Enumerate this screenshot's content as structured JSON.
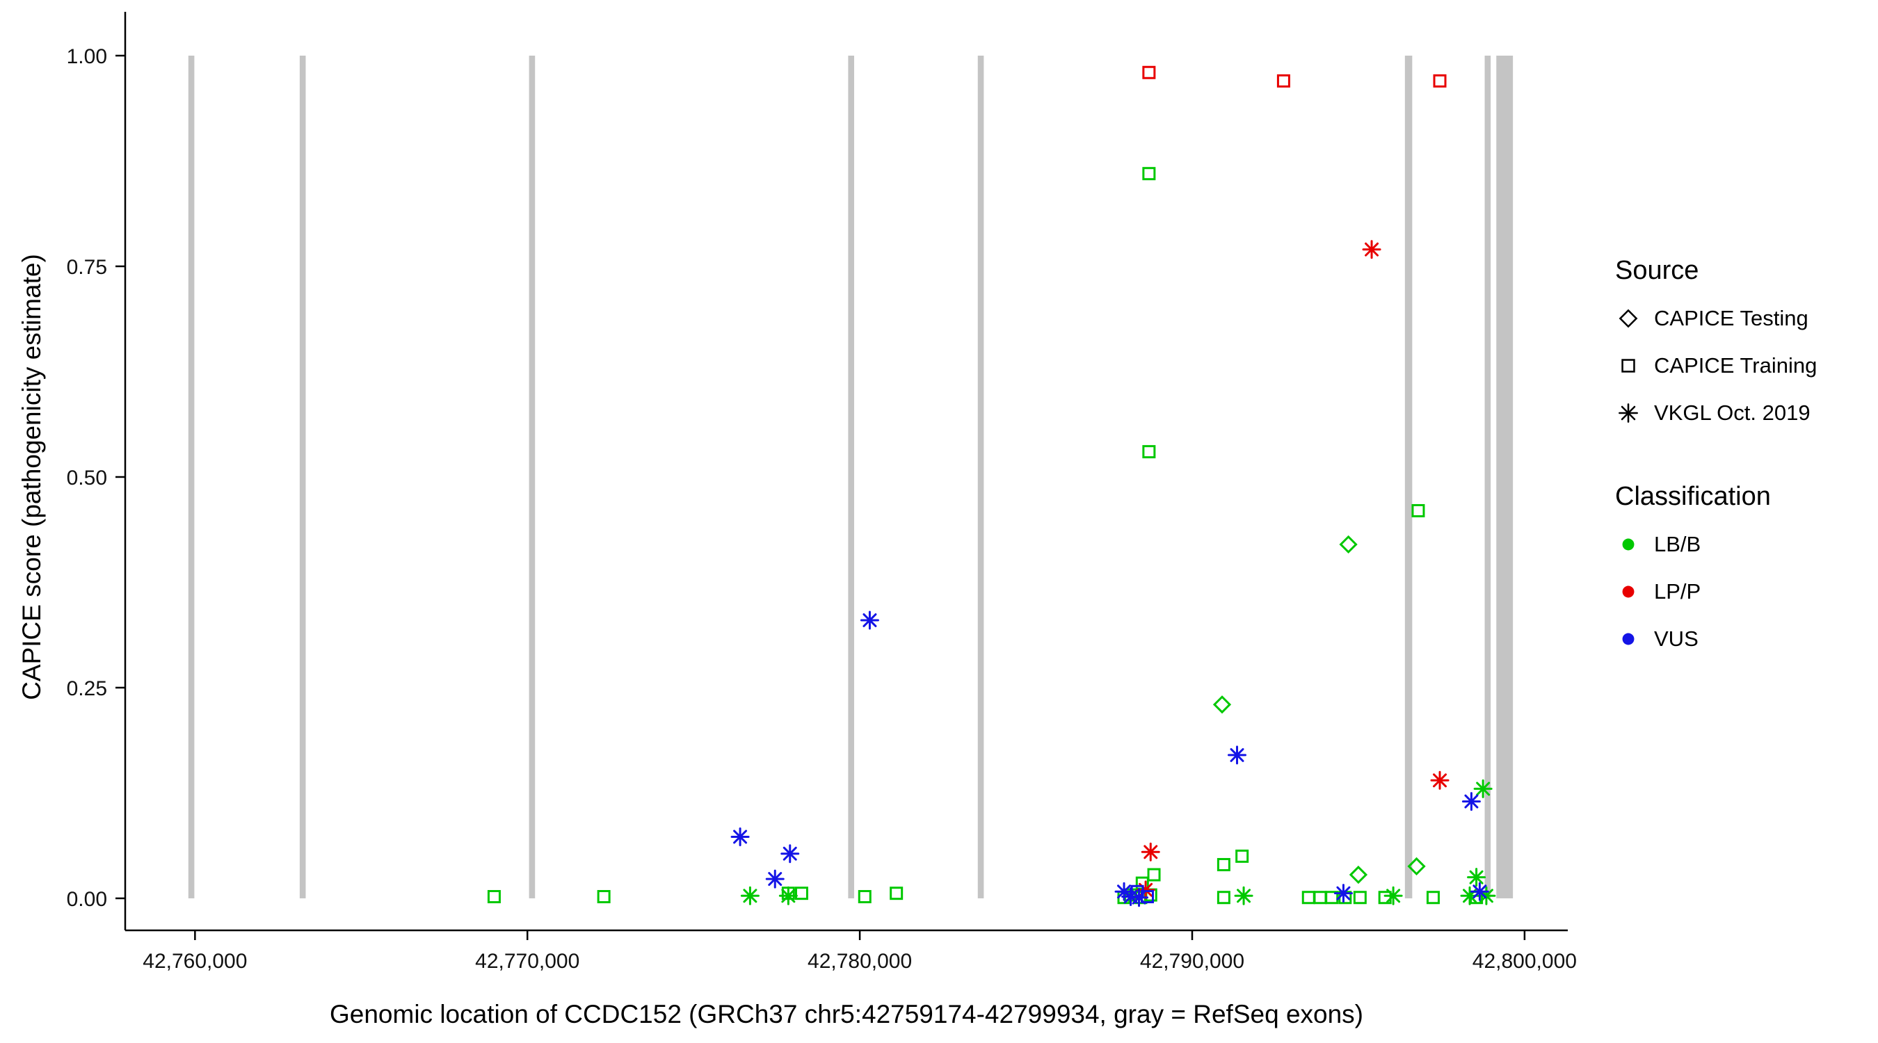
{
  "figure": {
    "background": "#FFFFFF",
    "text_color": "#000000",
    "axis_color": "#000000"
  },
  "legend": {
    "source": {
      "title": "Source",
      "items": [
        {
          "label": "CAPICE Testing",
          "shape": "diamond"
        },
        {
          "label": "CAPICE Training",
          "shape": "square"
        },
        {
          "label": "VKGL Oct. 2019",
          "shape": "asterisk"
        }
      ]
    },
    "classification": {
      "title": "Classification",
      "items": [
        {
          "label": "LB/B",
          "color": "#00C800"
        },
        {
          "label": "LP/P",
          "color": "#E80000"
        },
        {
          "label": "VUS",
          "color": "#1414E6"
        }
      ]
    }
  },
  "chart_data": {
    "type": "scatter",
    "title": "",
    "xlabel": "Genomic location of CCDC152 (GRCh37 chr5:42759174-42799934, gray = RefSeq exons)",
    "ylabel": "CAPICE score (pathogenicity estimate)",
    "xlim": [
      42757900,
      42801300
    ],
    "ylim": [
      -0.038,
      1.052
    ],
    "grid": false,
    "legend_position": "right",
    "x_ticks": [
      {
        "value": 42760000,
        "label": "42,760,000"
      },
      {
        "value": 42770000,
        "label": "42,770,000"
      },
      {
        "value": 42780000,
        "label": "42,780,000"
      },
      {
        "value": 42790000,
        "label": "42,790,000"
      },
      {
        "value": 42800000,
        "label": "42,800,000"
      }
    ],
    "y_ticks": [
      {
        "value": 0.0,
        "label": "0.00"
      },
      {
        "value": 0.25,
        "label": "0.25"
      },
      {
        "value": 0.5,
        "label": "0.50"
      },
      {
        "value": 0.75,
        "label": "0.75"
      },
      {
        "value": 1.0,
        "label": "1.00"
      }
    ],
    "exon_color": "#C4C4C4",
    "exons": [
      [
        42759800,
        42759980
      ],
      [
        42763150,
        42763330
      ],
      [
        42770050,
        42770230
      ],
      [
        42779650,
        42779830
      ],
      [
        42783550,
        42783730
      ],
      [
        42796400,
        42796620
      ],
      [
        42798800,
        42798980
      ],
      [
        42799150,
        42799650
      ]
    ],
    "series": [
      {
        "name": "CAPICE Testing / LB/B",
        "source": "CAPICE Testing",
        "classification": "LB/B",
        "shape": "diamond",
        "color": "#00C800",
        "points": [
          [
            42794700,
            0.42
          ],
          [
            42790900,
            0.23
          ],
          [
            42796750,
            0.038
          ],
          [
            42795000,
            0.028
          ]
        ]
      },
      {
        "name": "CAPICE Training / LB/B",
        "source": "CAPICE Training",
        "classification": "LB/B",
        "shape": "square",
        "color": "#00C800",
        "points": [
          [
            42788700,
            0.86
          ],
          [
            42788700,
            0.53
          ],
          [
            42796800,
            0.46
          ],
          [
            42791500,
            0.05
          ],
          [
            42790950,
            0.04
          ],
          [
            42788850,
            0.028
          ],
          [
            42788500,
            0.018
          ],
          [
            42769000,
            0.002
          ],
          [
            42772300,
            0.002
          ],
          [
            42777850,
            0.006
          ],
          [
            42778250,
            0.006
          ],
          [
            42780150,
            0.002
          ],
          [
            42781100,
            0.006
          ],
          [
            42787950,
            0.001
          ],
          [
            42788150,
            0.004
          ],
          [
            42788450,
            0.001
          ],
          [
            42788750,
            0.004
          ],
          [
            42790950,
            0.001
          ],
          [
            42793500,
            0.001
          ],
          [
            42793850,
            0.001
          ],
          [
            42794200,
            0.001
          ],
          [
            42794600,
            0.001
          ],
          [
            42795050,
            0.001
          ],
          [
            42795800,
            0.001
          ],
          [
            42797250,
            0.001
          ],
          [
            42798550,
            0.001
          ]
        ]
      },
      {
        "name": "VKGL Oct. 2019 / LB/B",
        "source": "VKGL Oct. 2019",
        "classification": "LB/B",
        "shape": "asterisk",
        "color": "#00C800",
        "points": [
          [
            42798750,
            0.13
          ],
          [
            42798550,
            0.025
          ],
          [
            42776700,
            0.003
          ],
          [
            42777850,
            0.003
          ],
          [
            42791550,
            0.003
          ],
          [
            42796050,
            0.003
          ],
          [
            42798350,
            0.003
          ],
          [
            42798850,
            0.003
          ]
        ]
      },
      {
        "name": "CAPICE Training / LP/P",
        "source": "CAPICE Training",
        "classification": "LP/P",
        "shape": "square",
        "color": "#E80000",
        "points": [
          [
            42788700,
            0.98
          ],
          [
            42792750,
            0.97
          ],
          [
            42797450,
            0.97
          ]
        ]
      },
      {
        "name": "VKGL Oct. 2019 / LP/P",
        "source": "VKGL Oct. 2019",
        "classification": "LP/P",
        "shape": "asterisk",
        "color": "#E80000",
        "points": [
          [
            42795400,
            0.77
          ],
          [
            42797450,
            0.14
          ],
          [
            42788750,
            0.055
          ],
          [
            42788600,
            0.01
          ]
        ]
      },
      {
        "name": "CAPICE Training / VUS",
        "source": "CAPICE Training",
        "classification": "VUS",
        "shape": "square",
        "color": "#1414E6",
        "points": [
          [
            42788350,
            0.008
          ],
          [
            42788650,
            0.002
          ]
        ]
      },
      {
        "name": "VKGL Oct. 2019 / VUS",
        "source": "VKGL Oct. 2019",
        "classification": "VUS",
        "shape": "asterisk",
        "color": "#1414E6",
        "points": [
          [
            42780300,
            0.33
          ],
          [
            42791350,
            0.17
          ],
          [
            42798400,
            0.115
          ],
          [
            42776400,
            0.073
          ],
          [
            42777900,
            0.053
          ],
          [
            42777450,
            0.023
          ],
          [
            42787950,
            0.008
          ],
          [
            42788150,
            0.002
          ],
          [
            42788400,
            0.001
          ],
          [
            42794550,
            0.006
          ],
          [
            42798650,
            0.008
          ]
        ]
      }
    ]
  }
}
